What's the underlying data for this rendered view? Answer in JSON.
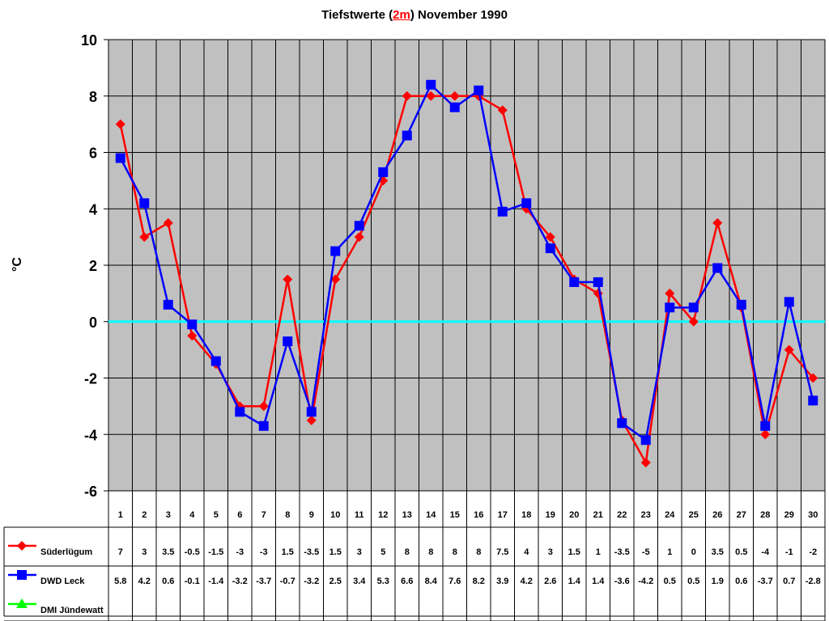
{
  "title": {
    "prefix": "Tiefstwerte (",
    "highlight": "2m",
    "suffix": ") November 1990"
  },
  "colors": {
    "suederluegum": "#ff0000",
    "dwd_leck": "#0000ff",
    "dmi_juendewatt": "#00ff00",
    "zero_line": "#00ffff",
    "plot_bg": "#c0c0c0"
  },
  "chart_data": {
    "type": "line",
    "title": "Tiefstwerte (2m) November 1990",
    "xlabel": "",
    "ylabel": "°C",
    "ylim": [
      -6,
      10
    ],
    "yticks": [
      10,
      8,
      6,
      4,
      2,
      0,
      -2,
      -4,
      -6
    ],
    "grid": true,
    "legend_position": "data-table-left",
    "categories": [
      1,
      2,
      3,
      4,
      5,
      6,
      7,
      8,
      9,
      10,
      11,
      12,
      13,
      14,
      15,
      16,
      17,
      18,
      19,
      20,
      21,
      22,
      23,
      24,
      25,
      26,
      27,
      28,
      29,
      30
    ],
    "series": [
      {
        "name": "Süderlügum",
        "color": "#ff0000",
        "marker": "diamond",
        "values": [
          7,
          3,
          3.5,
          -0.5,
          -1.5,
          -3,
          -3,
          1.5,
          -3.5,
          1.5,
          3,
          5,
          8,
          8,
          8,
          8,
          7.5,
          4,
          3,
          1.5,
          1,
          -3.5,
          -5,
          1,
          0,
          3.5,
          0.5,
          -4,
          -1,
          -2
        ]
      },
      {
        "name": "DWD Leck",
        "color": "#0000ff",
        "marker": "square",
        "values": [
          5.8,
          4.2,
          0.6,
          -0.1,
          -1.4,
          -3.2,
          -3.7,
          -0.7,
          -3.2,
          2.5,
          3.4,
          5.3,
          6.6,
          8.4,
          7.6,
          8.2,
          3.9,
          4.2,
          2.6,
          1.4,
          1.4,
          -3.6,
          -4.2,
          0.5,
          0.5,
          1.9,
          0.6,
          -3.7,
          0.7,
          -2.8
        ]
      },
      {
        "name": "DMI Jündewatt",
        "color": "#00ff00",
        "marker": "triangle",
        "values": []
      }
    ]
  }
}
